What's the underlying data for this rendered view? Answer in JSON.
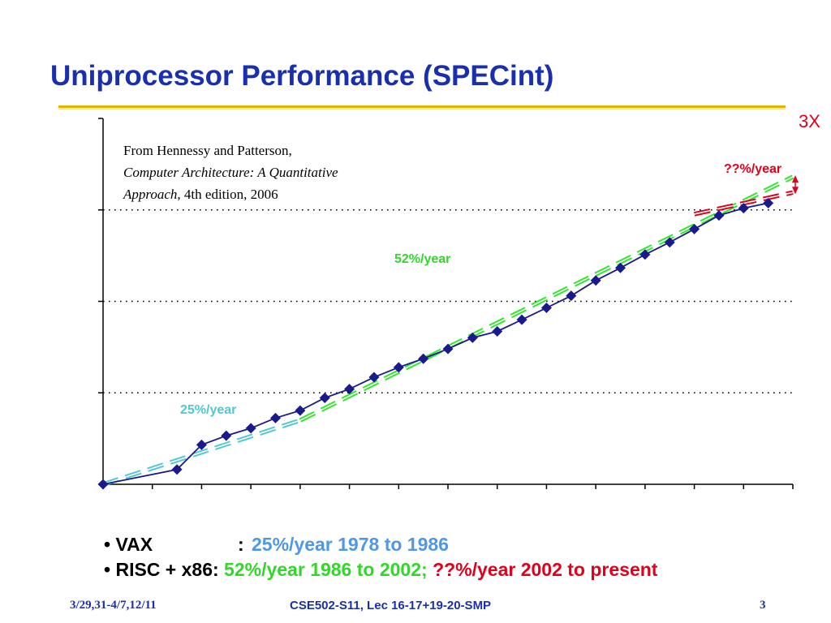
{
  "slide": {
    "title": "Uniprocessor Performance (SPECint)"
  },
  "citation": {
    "line1": "From Hennessy and Patterson,",
    "line2": "Computer Architecture: A Quantitative",
    "line3_italic": "Approach",
    "line3_rest": ", 4th edition, 2006"
  },
  "annotations": {
    "rate_25": "25%/year",
    "rate_52": "52%/year",
    "rate_unknown": "??%/year",
    "gap": "3X"
  },
  "bullets": [
    {
      "bullet": "•",
      "label": "VAX",
      "colon": ":",
      "rate": "25%/year 1978 to 1986"
    },
    {
      "bullet": "•",
      "label": "RISC + x86:",
      "rate_a": "52%/year 1986 to 2002;",
      "rate_b": "??%/year 2002 to present"
    }
  ],
  "footer": {
    "left": "3/29,31-4/7,12/11",
    "center": "CSE502-S11, Lec 16-17+19-20-SMP",
    "right": "3"
  },
  "colors": {
    "title": "#1a2fb0",
    "rule": "#e8b100",
    "series": "#1a1a8c",
    "trend_25": "#4fc9cf",
    "trend_52": "#2ee82a",
    "trend_unknown": "#e0001b"
  },
  "chart_data": {
    "type": "line",
    "x": [
      1978,
      1981,
      1982,
      1983,
      1984,
      1985,
      1986,
      1987,
      1988,
      1989,
      1990,
      1991,
      1992,
      1993,
      1994,
      1995,
      1996,
      1997,
      1998,
      1999,
      2000,
      2001,
      2002,
      2003,
      2004,
      2005
    ],
    "y": [
      1.0,
      1.45,
      2.7,
      3.4,
      4.1,
      5.3,
      6.4,
      8.8,
      11.0,
      14.8,
      19.0,
      23.6,
      30.2,
      40.0,
      47.0,
      63.0,
      85.0,
      115.0,
      169.0,
      232.0,
      325.0,
      442.0,
      617.0,
      870.0,
      1045.0,
      1186.0
    ],
    "log_scale": true,
    "ylim": [
      1,
      10000
    ],
    "xlim": [
      1978,
      2006
    ],
    "grid": "horizontal dotted",
    "trend_lines": [
      {
        "rate": "25%/year",
        "from": [
          1978,
          1.0
        ],
        "to": [
          1986,
          5.0
        ]
      },
      {
        "rate": "52%/year",
        "from": [
          1986,
          5.0
        ],
        "to": [
          2006,
          2300
        ]
      },
      {
        "rate": "??%/year",
        "from": [
          2002,
          900
        ],
        "to": [
          2006,
          1550
        ]
      }
    ]
  }
}
